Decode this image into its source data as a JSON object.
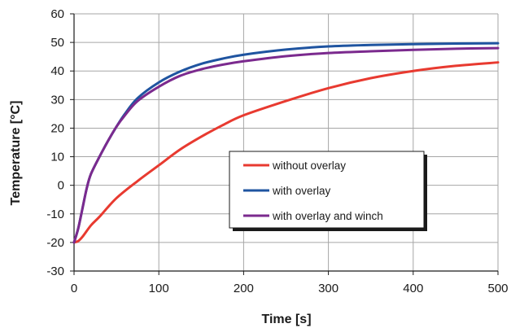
{
  "chart_data": {
    "type": "line",
    "title": "",
    "xlabel": "Time [s]",
    "ylabel": "Temperature [°C]",
    "xlim": [
      0,
      500
    ],
    "ylim": [
      -30,
      60
    ],
    "xticks": [
      0,
      100,
      200,
      300,
      400,
      500
    ],
    "yticks": [
      -30,
      -20,
      -10,
      0,
      10,
      20,
      30,
      40,
      50,
      60
    ],
    "grid": true,
    "legend_position": "center-right",
    "series": [
      {
        "name": "without overlay",
        "color": "#e83a30",
        "x": [
          0,
          5,
          10,
          20,
          30,
          50,
          75,
          100,
          125,
          150,
          175,
          200,
          250,
          300,
          350,
          400,
          450,
          500
        ],
        "y": [
          -20,
          -19.5,
          -18,
          -14,
          -11,
          -4.5,
          1.5,
          7,
          12.5,
          17,
          21,
          24.5,
          29.5,
          34,
          37.5,
          40,
          41.8,
          43
        ]
      },
      {
        "name": "with overlay",
        "color": "#1f54a0",
        "x": [
          0,
          5,
          10,
          15,
          20,
          30,
          40,
          50,
          60,
          75,
          100,
          125,
          150,
          175,
          200,
          250,
          300,
          350,
          400,
          450,
          500
        ],
        "y": [
          -20,
          -15,
          -8,
          -1,
          4,
          10,
          15.5,
          20.5,
          25,
          30.5,
          36,
          39.8,
          42.5,
          44.3,
          45.7,
          47.5,
          48.6,
          49.1,
          49.4,
          49.6,
          49.7
        ]
      },
      {
        "name": "with overlay and winch",
        "color": "#7b2a8e",
        "x": [
          0,
          5,
          10,
          15,
          20,
          30,
          40,
          50,
          60,
          75,
          100,
          125,
          150,
          175,
          200,
          250,
          300,
          350,
          400,
          450,
          500
        ],
        "y": [
          -20,
          -15,
          -8,
          -1,
          4,
          10,
          15.5,
          20.5,
          24.5,
          29.5,
          34.5,
          38.3,
          40.6,
          42.2,
          43.4,
          45.2,
          46.3,
          46.9,
          47.4,
          47.8,
          48
        ]
      }
    ]
  }
}
